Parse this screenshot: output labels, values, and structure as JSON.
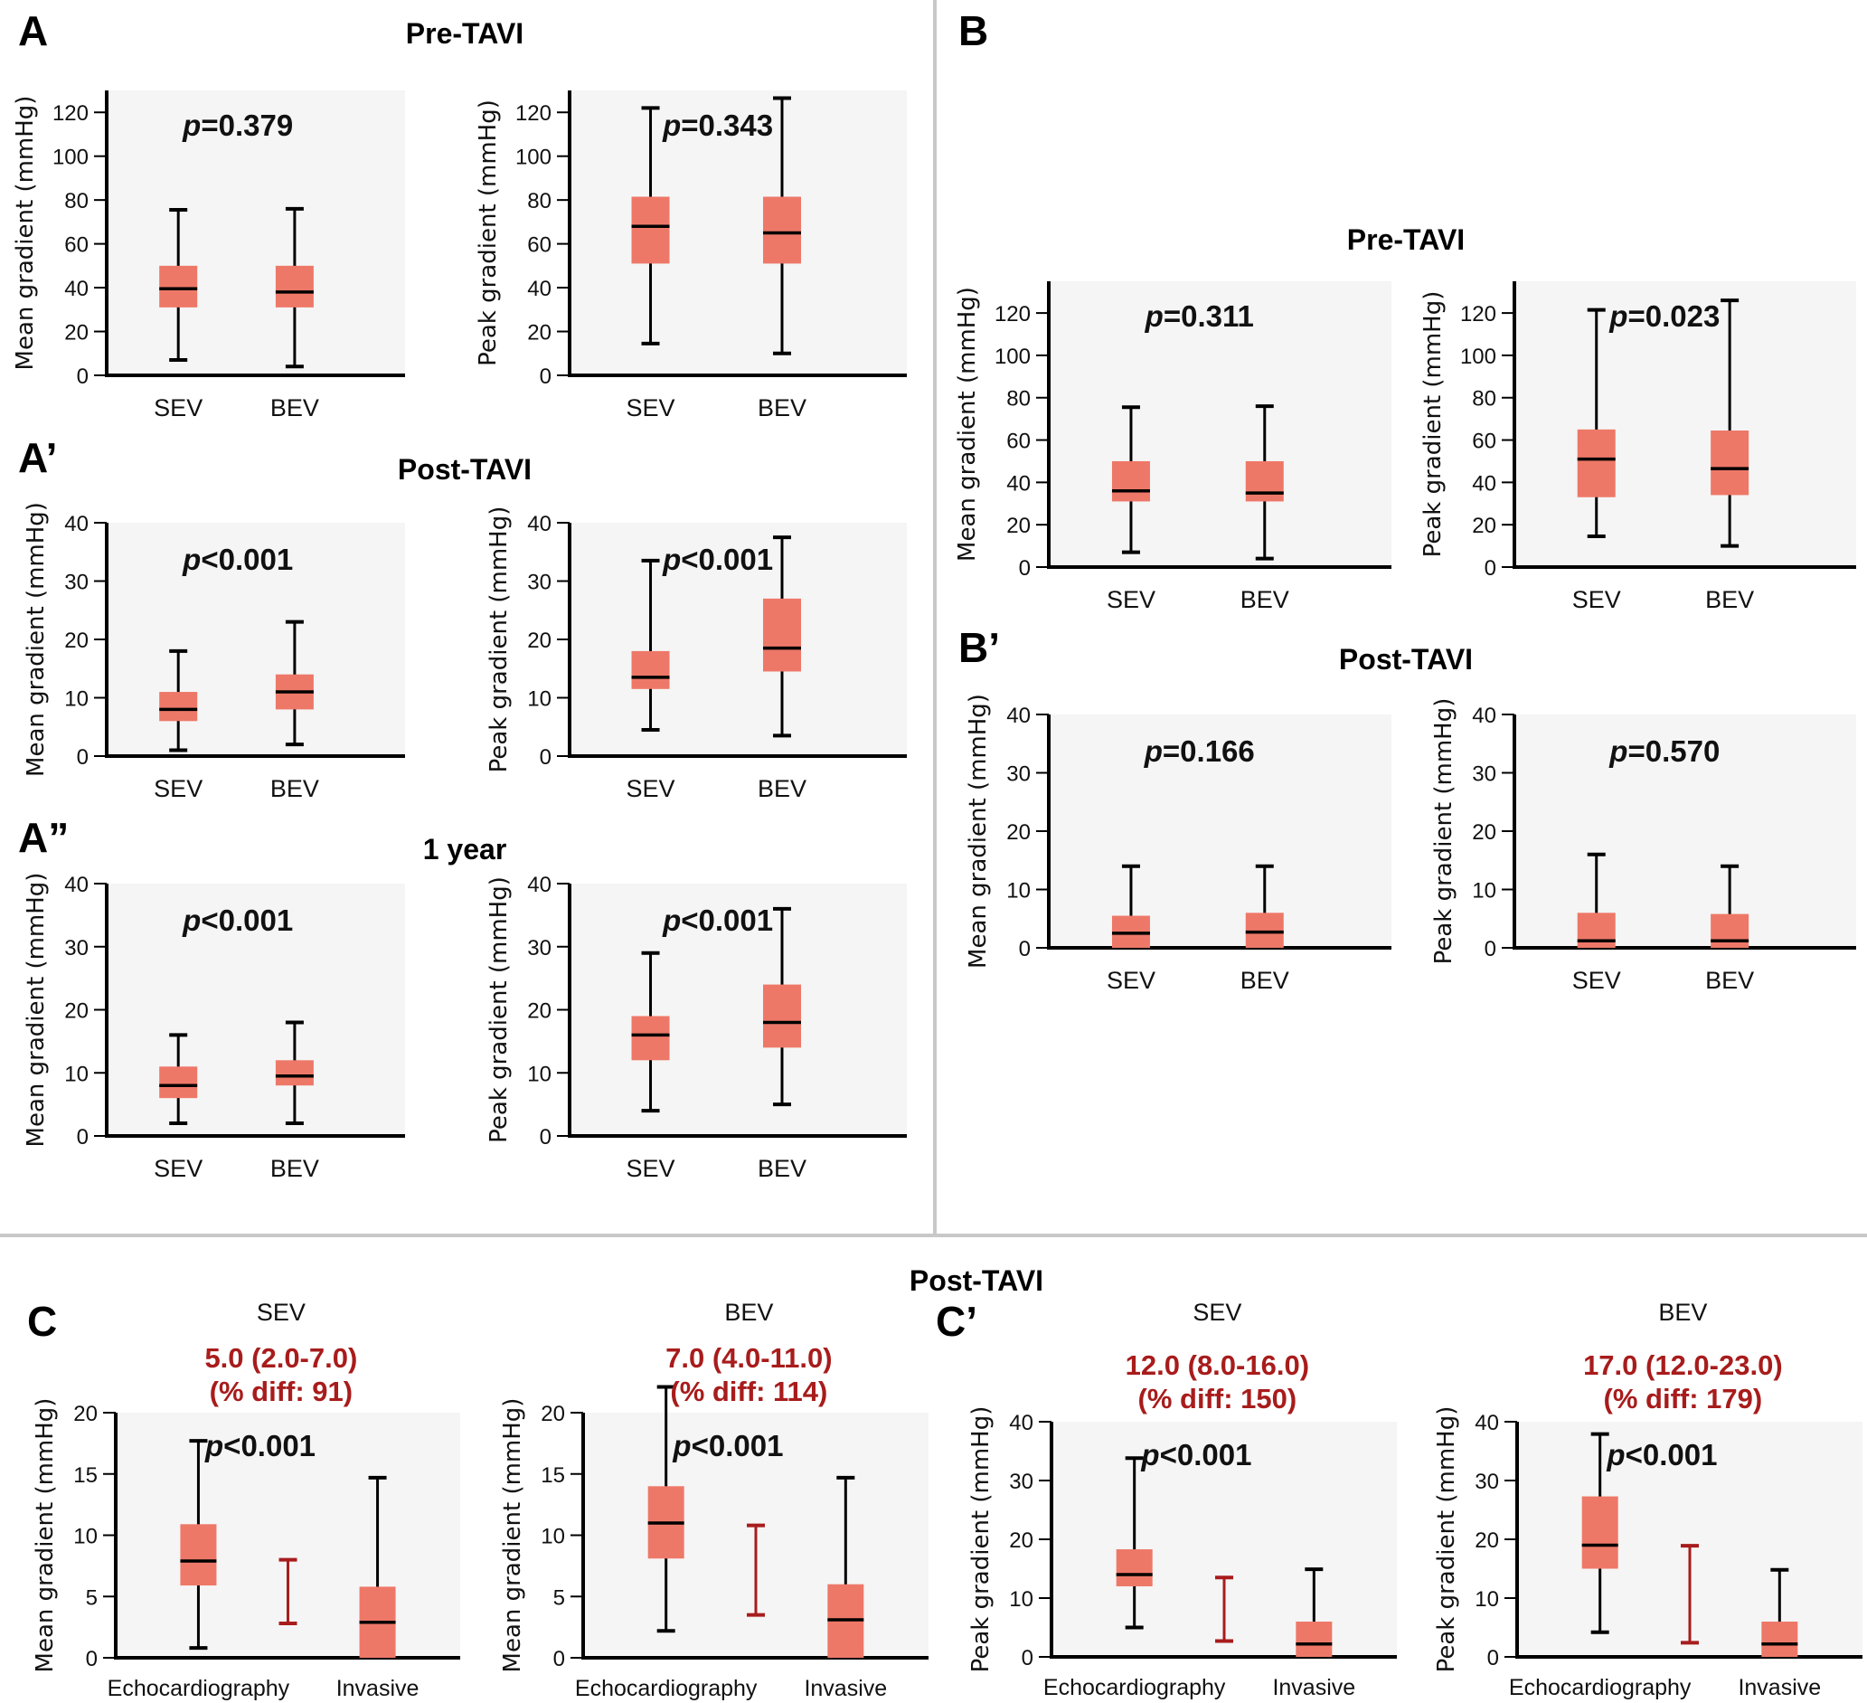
{
  "colors": {
    "box_fill": "#ee7868",
    "plot_bg": "#f5f5f5",
    "divider": "#c8c8c8",
    "diff_accent": "#a81c1c",
    "ink": "#111111"
  },
  "chart_data": [
    {
      "id": "A-mean-pre",
      "panel": "A",
      "section_title": "Pre-TAVI",
      "type": "boxplot",
      "ylabel": "Mean gradient (mmHg)",
      "ylim": [
        0,
        130
      ],
      "yticks": [
        0,
        20,
        40,
        60,
        80,
        100,
        120
      ],
      "categories": [
        "SEV",
        "BEV"
      ],
      "pvalue": "=0.379",
      "boxes": [
        {
          "category": "SEV",
          "min": 7,
          "q1": 31,
          "median": 39.5,
          "q3": 50,
          "max": 75.5
        },
        {
          "category": "BEV",
          "min": 4,
          "q1": 31,
          "median": 38,
          "q3": 50,
          "max": 76
        }
      ]
    },
    {
      "id": "A-peak-pre",
      "panel": "A",
      "type": "boxplot",
      "ylabel": "Peak gradient (mmHg)",
      "ylim": [
        0,
        130
      ],
      "yticks": [
        0,
        20,
        40,
        60,
        80,
        100,
        120
      ],
      "categories": [
        "SEV",
        "BEV"
      ],
      "pvalue": "=0.343",
      "boxes": [
        {
          "category": "SEV",
          "min": 14.5,
          "q1": 51,
          "median": 68,
          "q3": 81.5,
          "max": 122
        },
        {
          "category": "BEV",
          "min": 10,
          "q1": 51,
          "median": 65,
          "q3": 81.5,
          "max": 126.5
        }
      ]
    },
    {
      "id": "A-mean-post",
      "panel": "A’",
      "section_title": "Post-TAVI",
      "type": "boxplot",
      "ylabel": "Mean gradient (mmHg)",
      "ylim": [
        0,
        40
      ],
      "yticks": [
        0,
        10,
        20,
        30,
        40
      ],
      "categories": [
        "SEV",
        "BEV"
      ],
      "pvalue": "<0.001",
      "boxes": [
        {
          "category": "SEV",
          "min": 1,
          "q1": 6,
          "median": 8,
          "q3": 11,
          "max": 18
        },
        {
          "category": "BEV",
          "min": 2,
          "q1": 8,
          "median": 11,
          "q3": 14,
          "max": 23
        }
      ]
    },
    {
      "id": "A-peak-post",
      "panel": "A’",
      "type": "boxplot",
      "ylabel": "Peak gradient (mmHg)",
      "ylim": [
        0,
        40
      ],
      "yticks": [
        0,
        10,
        20,
        30,
        40
      ],
      "categories": [
        "SEV",
        "BEV"
      ],
      "pvalue": "<0.001",
      "boxes": [
        {
          "category": "SEV",
          "min": 4.5,
          "q1": 11.5,
          "median": 13.5,
          "q3": 18,
          "max": 33.5
        },
        {
          "category": "BEV",
          "min": 3.5,
          "q1": 14.5,
          "median": 18.5,
          "q3": 27,
          "max": 37.5
        }
      ]
    },
    {
      "id": "A-mean-1y",
      "panel": "A”",
      "section_title": "1 year",
      "type": "boxplot",
      "ylabel": "Mean gradient (mmHg)",
      "ylim": [
        0,
        40
      ],
      "yticks": [
        0,
        10,
        20,
        30,
        40
      ],
      "categories": [
        "SEV",
        "BEV"
      ],
      "pvalue": "<0.001",
      "boxes": [
        {
          "category": "SEV",
          "min": 2,
          "q1": 6,
          "median": 8,
          "q3": 11,
          "max": 16
        },
        {
          "category": "BEV",
          "min": 2,
          "q1": 8,
          "median": 9.5,
          "q3": 12,
          "max": 18
        }
      ]
    },
    {
      "id": "A-peak-1y",
      "panel": "A”",
      "type": "boxplot",
      "ylabel": "Peak gradient (mmHg)",
      "ylim": [
        0,
        40
      ],
      "yticks": [
        0,
        10,
        20,
        30,
        40
      ],
      "categories": [
        "SEV",
        "BEV"
      ],
      "pvalue": "<0.001",
      "boxes": [
        {
          "category": "SEV",
          "min": 4,
          "q1": 12,
          "median": 16,
          "q3": 19,
          "max": 29
        },
        {
          "category": "BEV",
          "min": 5,
          "q1": 14,
          "median": 18,
          "q3": 24,
          "max": 36
        }
      ]
    },
    {
      "id": "B-mean-pre",
      "panel": "B",
      "section_title": "Pre-TAVI",
      "type": "boxplot",
      "ylabel": "Mean gradient (mmHg)",
      "ylim": [
        0,
        135
      ],
      "yticks": [
        0,
        20,
        40,
        60,
        80,
        100,
        120
      ],
      "categories": [
        "SEV",
        "BEV"
      ],
      "pvalue": "=0.311",
      "boxes": [
        {
          "category": "SEV",
          "min": 7,
          "q1": 31,
          "median": 36,
          "q3": 50,
          "max": 75.5
        },
        {
          "category": "BEV",
          "min": 4,
          "q1": 31,
          "median": 35,
          "q3": 50,
          "max": 76
        }
      ]
    },
    {
      "id": "B-peak-pre",
      "panel": "B",
      "type": "boxplot",
      "ylabel": "Peak gradient (mmHg)",
      "ylim": [
        0,
        135
      ],
      "yticks": [
        0,
        20,
        40,
        60,
        80,
        100,
        120
      ],
      "categories": [
        "SEV",
        "BEV"
      ],
      "pvalue": "=0.023",
      "boxes": [
        {
          "category": "SEV",
          "min": 14.5,
          "q1": 33,
          "median": 51,
          "q3": 65,
          "max": 121.5
        },
        {
          "category": "BEV",
          "min": 10,
          "q1": 34,
          "median": 46.5,
          "q3": 64.5,
          "max": 126
        }
      ]
    },
    {
      "id": "B-mean-post",
      "panel": "B’",
      "section_title": "Post-TAVI",
      "type": "boxplot",
      "ylabel": "Mean gradient (mmHg)",
      "ylim": [
        0,
        40
      ],
      "yticks": [
        0,
        10,
        20,
        30,
        40
      ],
      "categories": [
        "SEV",
        "BEV"
      ],
      "pvalue": "=0.166",
      "boxes": [
        {
          "category": "SEV",
          "min": 0,
          "q1": 0,
          "median": 2.5,
          "q3": 5.5,
          "max": 14
        },
        {
          "category": "BEV",
          "min": 0,
          "q1": 0,
          "median": 2.7,
          "q3": 6,
          "max": 14
        }
      ]
    },
    {
      "id": "B-peak-post",
      "panel": "B’",
      "type": "boxplot",
      "ylabel": "Peak gradient (mmHg)",
      "ylim": [
        0,
        40
      ],
      "yticks": [
        0,
        10,
        20,
        30,
        40
      ],
      "categories": [
        "SEV",
        "BEV"
      ],
      "pvalue": "=0.570",
      "boxes": [
        {
          "category": "SEV",
          "min": 0,
          "q1": 0,
          "median": 1.2,
          "q3": 6,
          "max": 16
        },
        {
          "category": "BEV",
          "min": 0,
          "q1": 0,
          "median": 1.2,
          "q3": 5.8,
          "max": 14
        }
      ]
    },
    {
      "id": "C-mean-SEV",
      "panel": "C",
      "section_title": "Post-TAVI",
      "group": "SEV",
      "type": "boxplot",
      "ylabel": "Mean gradient (mmHg)",
      "ylim": [
        0,
        20
      ],
      "yticks": [
        0,
        5,
        10,
        15,
        20
      ],
      "categories": [
        "Echocardiography",
        "Invasive"
      ],
      "pvalue": "<0.001",
      "diff_text": [
        "5.0 (2.0-7.0)",
        "(% diff:  91)"
      ],
      "diff_range": {
        "low": 2.8,
        "high": 8
      },
      "boxes": [
        {
          "category": "Echocardiography",
          "min": 0.8,
          "q1": 5.9,
          "median": 7.9,
          "q3": 10.9,
          "max": 17.7
        },
        {
          "category": "Invasive",
          "min": 0,
          "q1": 0,
          "median": 2.9,
          "q3": 5.8,
          "max": 14.7
        }
      ]
    },
    {
      "id": "C-mean-BEV",
      "panel": "C",
      "group": "BEV",
      "type": "boxplot",
      "ylabel": "Mean gradient (mmHg)",
      "ylim": [
        0,
        20
      ],
      "yticks": [
        0,
        5,
        10,
        15,
        20
      ],
      "categories": [
        "Echocardiography",
        "Invasive"
      ],
      "pvalue": "<0.001",
      "diff_text": [
        "7.0 (4.0-11.0)",
        "(% diff:  114)"
      ],
      "diff_range": {
        "low": 3.5,
        "high": 10.8
      },
      "boxes": [
        {
          "category": "Echocardiography",
          "min": 2.2,
          "q1": 8.1,
          "median": 11,
          "q3": 14,
          "max": 22.1
        },
        {
          "category": "Invasive",
          "min": 0,
          "q1": 0,
          "median": 3.1,
          "q3": 6,
          "max": 14.7
        }
      ]
    },
    {
      "id": "C-peak-SEV",
      "panel": "C’",
      "group": "SEV",
      "type": "boxplot",
      "ylabel": "Peak gradient (mmHg)",
      "ylim": [
        0,
        40
      ],
      "yticks": [
        0,
        10,
        20,
        30,
        40
      ],
      "categories": [
        "Echocardiography",
        "Invasive"
      ],
      "pvalue": "<0.001",
      "diff_text": [
        "12.0 (8.0-16.0)",
        "(% diff:  150)"
      ],
      "diff_range": {
        "low": 2.7,
        "high": 13.5
      },
      "boxes": [
        {
          "category": "Echocardiography",
          "min": 5,
          "q1": 12,
          "median": 14,
          "q3": 18.3,
          "max": 33.8
        },
        {
          "category": "Invasive",
          "min": 0,
          "q1": 0,
          "median": 2.2,
          "q3": 6,
          "max": 14.9
        }
      ]
    },
    {
      "id": "C-peak-BEV",
      "panel": "C’",
      "group": "BEV",
      "type": "boxplot",
      "ylabel": "Peak gradient (mmHg)",
      "ylim": [
        0,
        40
      ],
      "yticks": [
        0,
        10,
        20,
        30,
        40
      ],
      "categories": [
        "Echocardiography",
        "Invasive"
      ],
      "pvalue": "<0.001",
      "diff_text": [
        "17.0 (12.0-23.0)",
        "(% diff:  179)"
      ],
      "diff_range": {
        "low": 2.4,
        "high": 18.9
      },
      "boxes": [
        {
          "category": "Echocardiography",
          "min": 4.2,
          "q1": 15,
          "median": 19,
          "q3": 27.3,
          "max": 37.9
        },
        {
          "category": "Invasive",
          "min": 0,
          "q1": 0,
          "median": 2.2,
          "q3": 6,
          "max": 14.8
        }
      ]
    }
  ],
  "labels": {
    "panel_A": "A",
    "panel_A1": "A’",
    "panel_A2": "A”",
    "panel_B": "B",
    "panel_B1": "B’",
    "panel_C": "C",
    "panel_C1": "C’",
    "title_A": "Pre-TAVI",
    "title_A1": "Post-TAVI",
    "title_A2": "1 year",
    "title_B": "Pre-TAVI",
    "title_B1": "Post-TAVI",
    "title_C": "Post-TAVI",
    "p_symbol": "p"
  }
}
